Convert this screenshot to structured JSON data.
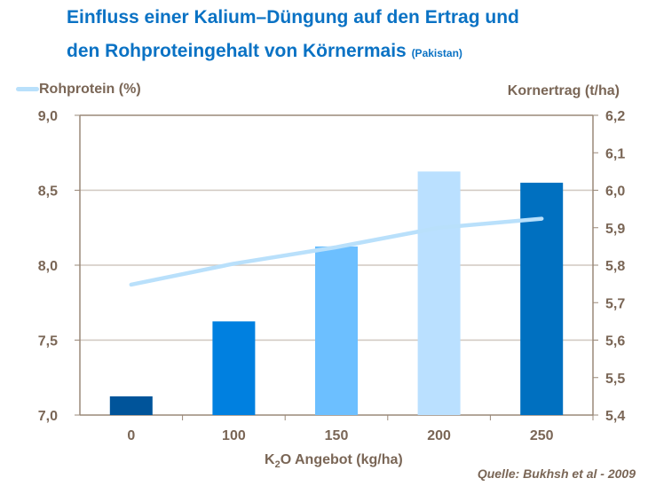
{
  "title_line1": "Einfluss einer Kalium–Düngung auf den Ertrag und",
  "title_line2": "den Rohproteingehalt von Körnermais",
  "title_note": "(Pakistan)",
  "source": "Quelle:  Bukhsh et al - 2009",
  "chart_data": {
    "type": "bar+line",
    "categories": [
      "0",
      "100",
      "150",
      "200",
      "250"
    ],
    "xlabel_main": "K",
    "xlabel_sub": "2",
    "xlabel_rest": "O Angebot (kg/ha)",
    "left_axis": {
      "label": "Rohprotein (%)",
      "ylim": [
        7.0,
        9.0
      ],
      "ticks": [
        "7,0",
        "7,5",
        "8,0",
        "8,5",
        "9,0"
      ]
    },
    "right_axis": {
      "label": "Kornertrag (t/ha)",
      "ylim": [
        5.4,
        6.2
      ],
      "ticks": [
        "5,4",
        "5,5",
        "5,6",
        "5,7",
        "5,8",
        "5,9",
        "6,0",
        "6,1",
        "6,2"
      ]
    },
    "bars": {
      "axis": "right",
      "values": [
        5.45,
        5.65,
        5.85,
        6.05,
        6.02
      ],
      "colors": [
        "#00549a",
        "#0080e0",
        "#6cbfff",
        "#bae0ff",
        "#0070c0"
      ]
    },
    "line": {
      "name": "Rohprotein (%)",
      "axis": "left",
      "values": [
        7.87,
        8.01,
        8.12,
        8.25,
        8.31
      ],
      "color": "#b9e0fb"
    },
    "grid": true,
    "legend": "top-left"
  }
}
